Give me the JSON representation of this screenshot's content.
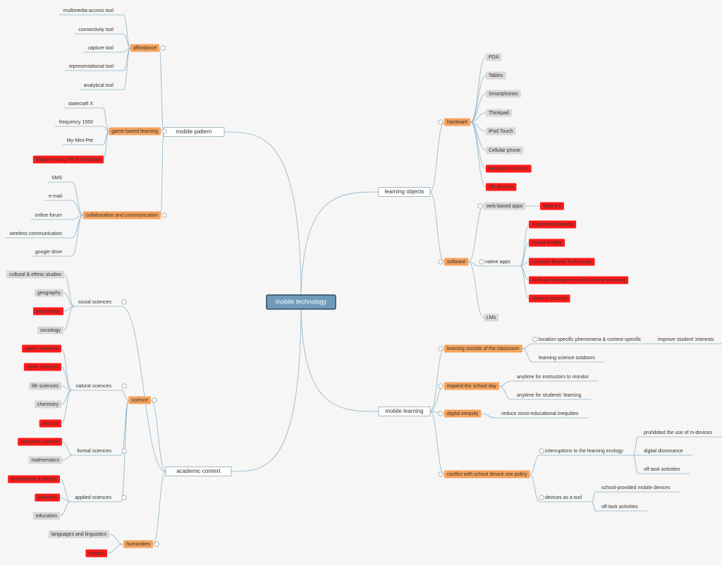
{
  "root": {
    "label": "mobile technology",
    "children": [
      {
        "label": "mobile pattern",
        "children": [
          {
            "label": "affordance",
            "children": [
              {
                "label": "multimedia-access tool"
              },
              {
                "label": "connectivity tool"
              },
              {
                "label": "capture tool"
              },
              {
                "label": "representational tool"
              },
              {
                "label": "analytical tool"
              }
            ]
          },
          {
            "label": "game-based learning",
            "children": [
              {
                "label": "statecraft X"
              },
              {
                "label": "frequency 1550"
              },
              {
                "label": "My-Mini-Pet"
              },
              {
                "label": "Blippar (using AR technology)"
              }
            ]
          },
          {
            "label": "collaboration and communication",
            "children": [
              {
                "label": "SMS"
              },
              {
                "label": "e-mail"
              },
              {
                "label": "online forum"
              },
              {
                "label": "wireless communication"
              },
              {
                "label": "google drive"
              }
            ]
          }
        ]
      },
      {
        "label": "academic context",
        "children": [
          {
            "label": "social sciences",
            "children": [
              {
                "label": "cultural & ethnic studies"
              },
              {
                "label": "geography"
              },
              {
                "label": "psychology"
              },
              {
                "label": "sociology"
              }
            ]
          },
          {
            "label": "science",
            "children": [
              {
                "label": "natural sciences",
                "children": [
                  {
                    "label": "space sciences"
                  },
                  {
                    "label": "earth sciences"
                  },
                  {
                    "label": "life sciences"
                  },
                  {
                    "label": "chemistry"
                  },
                  {
                    "label": "physics"
                  }
                ]
              },
              {
                "label": "formal sciences",
                "children": [
                  {
                    "label": "computer science"
                  },
                  {
                    "label": "mathematics"
                  }
                ]
              },
              {
                "label": "applied sciences",
                "children": [
                  {
                    "label": "architecture & design"
                  },
                  {
                    "label": "business"
                  },
                  {
                    "label": "education"
                  }
                ]
              }
            ]
          },
          {
            "label": "humanities",
            "children": [
              {
                "label": "languages and linguistics"
              },
              {
                "label": "religion"
              }
            ]
          }
        ]
      },
      {
        "label": "learning objects",
        "children": [
          {
            "label": "hardware",
            "children": [
              {
                "label": "PDA"
              },
              {
                "label": "Tables"
              },
              {
                "label": "Smartphones"
              },
              {
                "label": "Thinkpad"
              },
              {
                "label": "iPod Touch"
              },
              {
                "label": "Cellular phone"
              },
              {
                "label": "Wearable Devices"
              },
              {
                "label": "VR devices"
              }
            ]
          },
          {
            "label": "software",
            "children": [
              {
                "label": "web-based apps",
                "children": [
                  {
                    "label": "Web 3.0"
                  }
                ]
              },
              {
                "label": "native apps",
                "children": [
                  {
                    "label": "Augmented Reality"
                  },
                  {
                    "label": "Virtual Reality"
                  },
                  {
                    "label": "Location Based Technology"
                  },
                  {
                    "label": "Artificial Intelligence and Machine Learning"
                  },
                  {
                    "label": "Voice Assistants"
                  }
                ]
              },
              {
                "label": "LMs"
              }
            ]
          }
        ]
      },
      {
        "label": "mobile learning",
        "children": [
          {
            "label": "learning outside of the classroom",
            "children": [
              {
                "label": "location-specific phenomena & context-specific",
                "children": [
                  {
                    "label": "improve student' interests"
                  }
                ]
              },
              {
                "label": "learning science outdoors"
              }
            ]
          },
          {
            "label": "expand the school day",
            "children": [
              {
                "label": "anytime for instructors to monitor"
              },
              {
                "label": "anytime for students' learning"
              }
            ]
          },
          {
            "label": "digital inequity",
            "children": [
              {
                "label": "reduce socio-educational inequities"
              }
            ]
          },
          {
            "label": "conflict with school device use policy",
            "children": [
              {
                "label": "interruptions to the learning ecology",
                "children": [
                  {
                    "label": "prohibited the use of m-devices"
                  },
                  {
                    "label": "digital dissonance"
                  },
                  {
                    "label": "off-task activities"
                  }
                ]
              },
              {
                "label": "devices as a tool",
                "children": [
                  {
                    "label": "school-provided mobile devices"
                  },
                  {
                    "label": "off-task activities"
                  }
                ]
              }
            ]
          }
        ]
      }
    ]
  }
}
